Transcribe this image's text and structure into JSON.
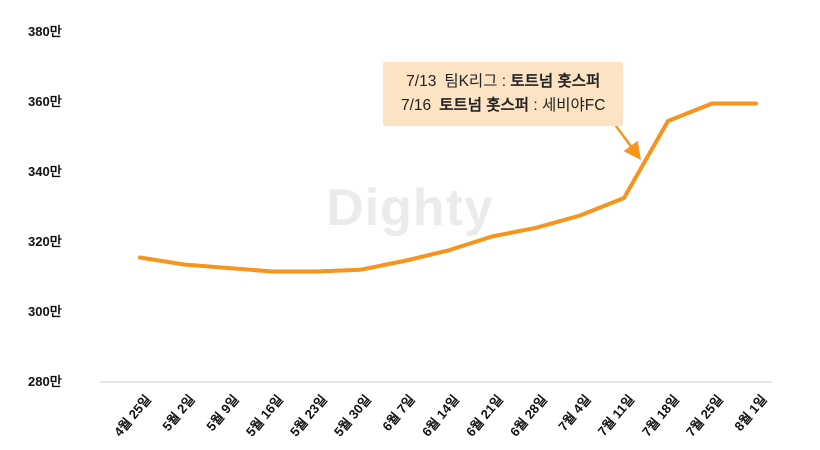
{
  "chart_data": {
    "type": "line",
    "title": "",
    "xlabel": "",
    "ylabel": "",
    "categories": [
      "4월 25일",
      "5월 2일",
      "5월 9일",
      "5월 16일",
      "5월 23일",
      "5월 30일",
      "6월 7일",
      "6월 14일",
      "6월 21일",
      "6월 28일",
      "7월 4일",
      "7월 11일",
      "7월 18일",
      "7월 25일",
      "8월 1일"
    ],
    "values": [
      315,
      313,
      312,
      311,
      311,
      311.5,
      314,
      317,
      321,
      323.5,
      327,
      332,
      354,
      359,
      359
    ],
    "unit": "만",
    "ylim": [
      280,
      380
    ],
    "y_ticks": [
      380,
      360,
      340,
      320,
      300,
      280
    ],
    "y_tick_labels": [
      "380만",
      "360만",
      "340만",
      "320만",
      "300만",
      "280만"
    ],
    "grid": false,
    "legend": "none",
    "series_color": "#F7941D",
    "axis_color": "#c9c9c9"
  },
  "annotation": {
    "line1_date": "7/13",
    "line1_pre": "팀K리그 : ",
    "line1_bold": "토트넘 홋스퍼",
    "line2_date": "7/16",
    "line2_bold": "토트넘 홋스퍼",
    "line2_post": " : 세비야FC",
    "bg_color": "#FBE3C4"
  },
  "watermark": "Dighty"
}
